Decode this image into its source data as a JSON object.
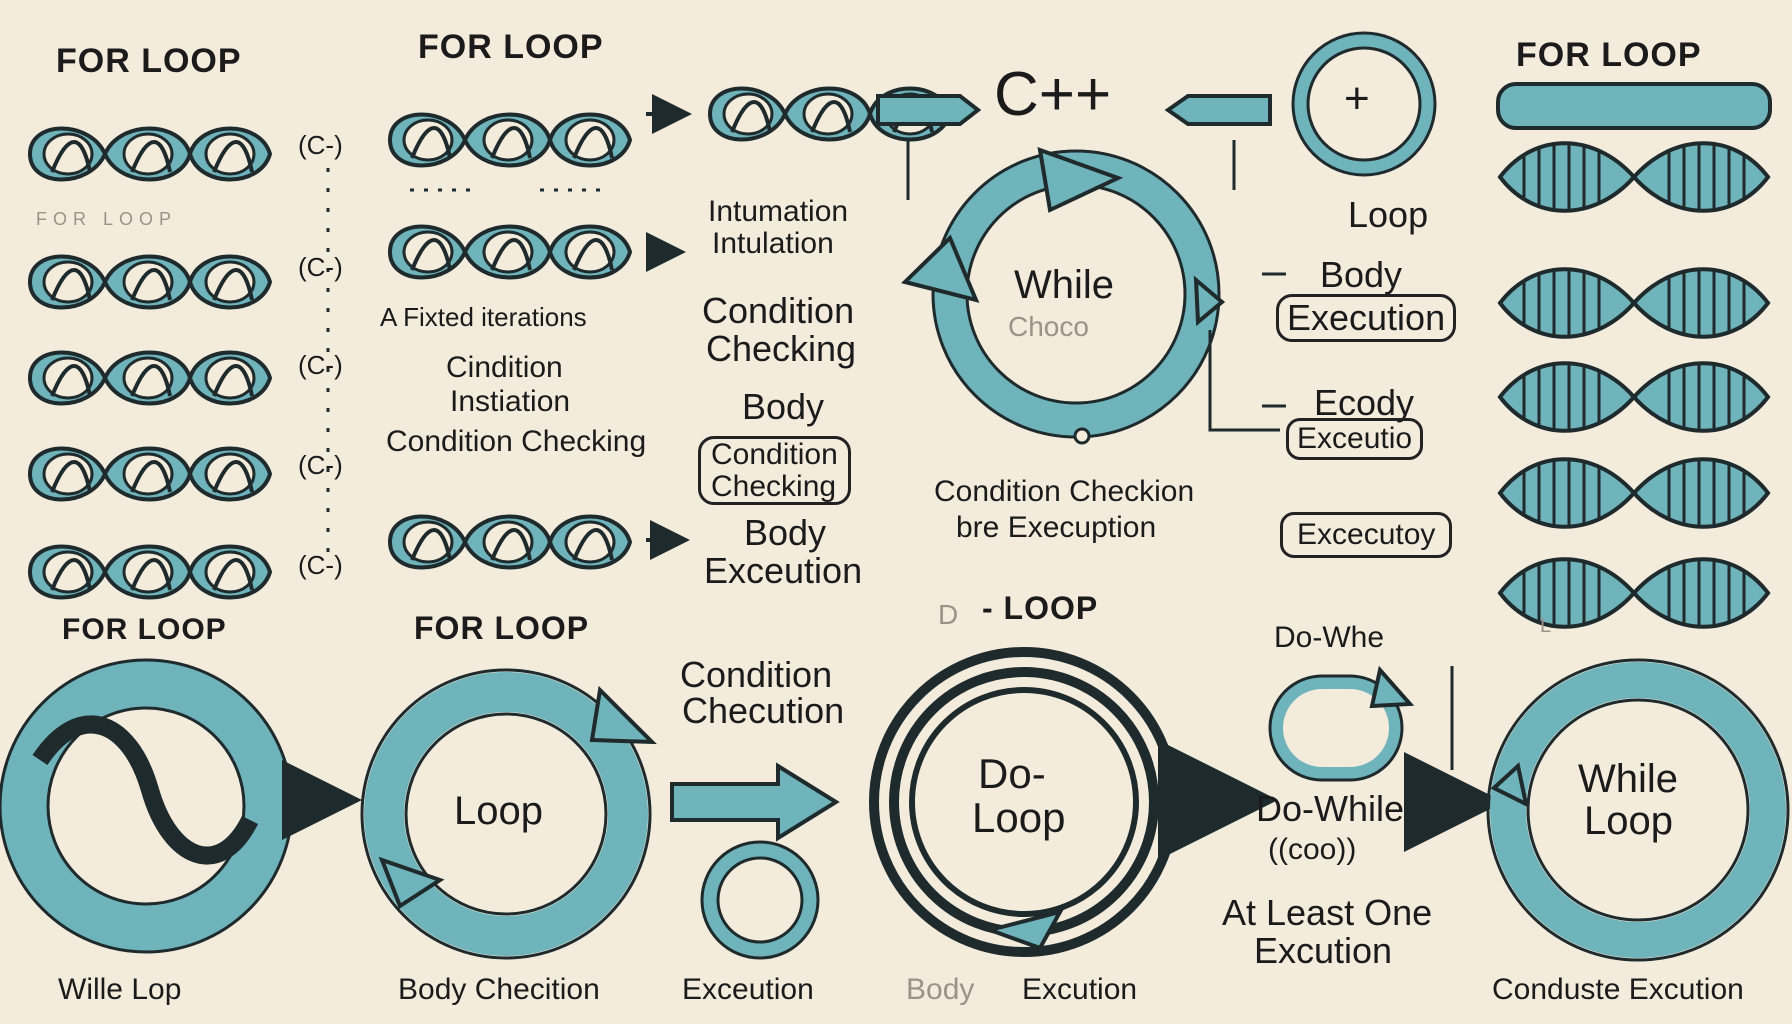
{
  "labels": {
    "for_loop_1": "FOR LOOP",
    "for_loop_2": "FOR LOOP",
    "for_loop_3": "FOR LOOP",
    "for_loop_4": "FOR LOOP",
    "for_loop_5": "FOR LOOP",
    "c_1": "(C-)",
    "c_2": "(C-)",
    "c_3": "(C-)",
    "c_4": "(C-)",
    "c_5": "(C-)",
    "for_loop_faint": "FOR LOOP",
    "fixed_iterations": "A Fixted  iterations",
    "condition_1": "Cindition",
    "instiation": "Instiation",
    "condition_checking_1": "Condition Checking",
    "intumation": "Intumation",
    "intulation": "Intulation",
    "condition_checking_2a": "Condition",
    "condition_checking_2b": "Checking",
    "body_1": "Body",
    "condition_checking_3a": "Condition",
    "condition_checking_3b": "Checking",
    "body_execution_1a": "Body",
    "body_execution_1b": "Exceution",
    "cpp": "C++",
    "plus": "+",
    "while": "While",
    "choco": "Choco",
    "condition_checkion": "Condition Checkion",
    "bre_execution": "bre Execuption",
    "loop_right": "Loop",
    "body_execution_2a": "Body",
    "body_execution_2b": "Execution",
    "ecody": "Ecody",
    "excecutio": "Exceutio",
    "excecutoy": "Excecutoy",
    "do_faint": "D",
    "loop_faint": "L",
    "d_loop": "- LOOP",
    "condition_chec_a": "Condition",
    "condition_chec_b": "Checution",
    "loop_center": "Loop",
    "do_loop_a": "Do-",
    "do_loop_b": "Loop",
    "do_whe": "Do-Whe",
    "do_while": "Do-While",
    "coop": "((coo))",
    "at_least_one": "At Least One",
    "excution_1": "Excution",
    "while_loop_a": "While",
    "while_loop_b": "Loop",
    "wille_lop": "Wille Lop",
    "body_checition": "Body Checition",
    "exceution_2": "Exceution",
    "body_faint": "Body",
    "excution_2": "Excution",
    "conduste_excution": "Conduste Excution"
  },
  "colors": {
    "background": "#f3ecdc",
    "teal": "#6fb3bb",
    "ink": "#1e2a2c"
  }
}
